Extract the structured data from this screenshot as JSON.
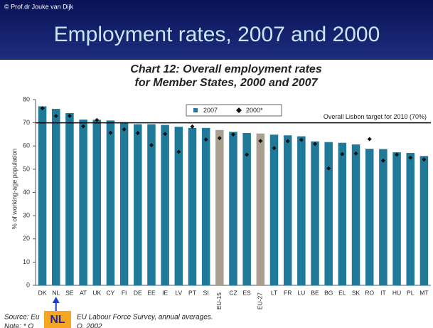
{
  "copyright": "© Prof.dr Jouke van Dijk",
  "slide_title": "Employment rates, 2007 and 2000",
  "chart_data": {
    "type": "bar",
    "title": [
      "Chart 12: Overall employment rates",
      "for Member States, 2000 and 2007"
    ],
    "ylabel": "% of working-age population",
    "categories": [
      "DK",
      "NL",
      "SE",
      "AT",
      "UK",
      "CY",
      "FI",
      "DE",
      "EE",
      "IE",
      "LV",
      "PT",
      "SI",
      "EU-15",
      "CZ",
      "ES",
      "EU-27",
      "LT",
      "FR",
      "LU",
      "BE",
      "BG",
      "EL",
      "SK",
      "RO",
      "IT",
      "HU",
      "PL",
      "MT"
    ],
    "series": [
      {
        "name": "2007",
        "color": "#1f7a99",
        "highlight_color": "#a89f8f",
        "highlight": [
          "EU-15",
          "EU-27"
        ],
        "values": [
          77.1,
          76.0,
          74.2,
          71.4,
          71.3,
          71.0,
          70.3,
          69.4,
          69.4,
          69.1,
          68.3,
          67.8,
          67.8,
          66.9,
          66.1,
          65.6,
          65.4,
          64.9,
          64.6,
          64.2,
          62.0,
          61.7,
          61.4,
          60.7,
          58.8,
          58.7,
          57.3,
          57.0,
          55.7
        ]
      },
      {
        "name": "2000*",
        "color": "#111111",
        "values": [
          76.3,
          72.9,
          73.0,
          68.5,
          71.2,
          65.7,
          67.2,
          65.6,
          60.4,
          65.2,
          57.5,
          68.4,
          62.8,
          63.4,
          65.0,
          56.3,
          62.2,
          59.1,
          62.1,
          62.7,
          60.9,
          50.4,
          56.5,
          56.8,
          63.0,
          53.7,
          56.3,
          55.0,
          54.2
        ]
      }
    ],
    "target": {
      "value": 70,
      "label": "Overall Lisbon target for 2010 (70%)"
    },
    "ylim": [
      0,
      80
    ],
    "yticks": [
      0,
      10,
      20,
      30,
      40,
      50,
      60,
      70,
      80
    ],
    "grid": false,
    "legend": "top",
    "annotation": {
      "label": "NL",
      "category": "NL"
    },
    "source": [
      "Source: Eu",
      "EU Labour Force Survey, annual averages."
    ],
    "note": [
      "Note: * O",
      "O, 2002"
    ]
  }
}
